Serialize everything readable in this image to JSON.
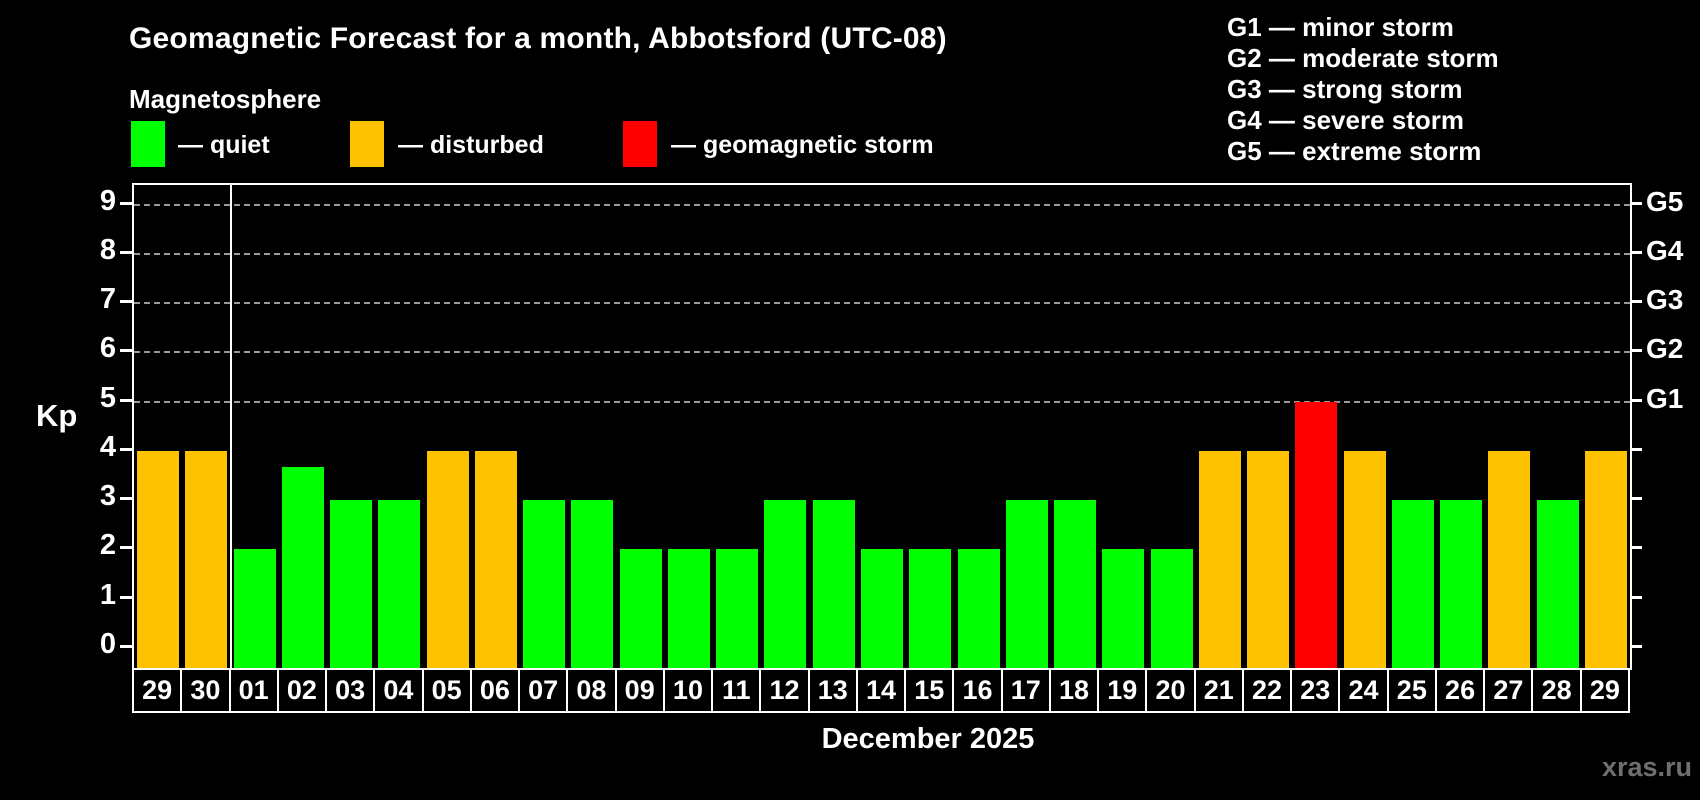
{
  "title": "Geomagnetic Forecast for a month, Abbotsford (UTC-08)",
  "subtitle": "Magnetosphere",
  "legend": {
    "quiet_label": "— quiet",
    "disturbed_label": "— disturbed",
    "storm_label": "— geomagnetic storm"
  },
  "storm_scale_legend": [
    "G1 — minor storm",
    "G2 — moderate storm",
    "G3 — strong storm",
    "G4 — severe storm",
    "G5 — extreme storm"
  ],
  "watermark": "xras.ru",
  "colors": {
    "quiet": "#00ff00",
    "disturbed": "#ffc200",
    "storm": "#ff0000",
    "grid": "#999999",
    "frame": "#ffffff",
    "background": "#000000",
    "watermark": "#6f6f6f"
  },
  "chart_data": {
    "type": "bar",
    "title": "Geomagnetic Forecast for a month, Abbotsford (UTC-08)",
    "xlabel": "December 2025",
    "ylabel": "Kp",
    "ylim": [
      -0.45,
      9.4
    ],
    "y_ticks": [
      0,
      1,
      2,
      3,
      4,
      5,
      6,
      7,
      8,
      9
    ],
    "right_axis_labels": [
      {
        "text": "G1",
        "value": 5
      },
      {
        "text": "G2",
        "value": 6
      },
      {
        "text": "G3",
        "value": 7
      },
      {
        "text": "G4",
        "value": 8
      },
      {
        "text": "G5",
        "value": 9
      }
    ],
    "gridline_values": [
      5,
      6,
      7,
      8,
      9
    ],
    "month_separator_after_index": 1,
    "categories": [
      "29",
      "30",
      "01",
      "02",
      "03",
      "04",
      "05",
      "06",
      "07",
      "08",
      "09",
      "10",
      "11",
      "12",
      "13",
      "14",
      "15",
      "16",
      "17",
      "18",
      "19",
      "20",
      "21",
      "22",
      "23",
      "24",
      "25",
      "26",
      "27",
      "28",
      "29"
    ],
    "values": [
      4,
      4,
      2,
      3.67,
      3,
      3,
      4,
      4,
      3,
      3,
      2,
      2,
      2,
      3,
      3,
      2,
      2,
      2,
      3,
      3,
      2,
      2,
      4,
      4,
      5,
      4,
      3,
      3,
      4,
      3,
      4
    ],
    "states": [
      "disturbed",
      "disturbed",
      "quiet",
      "quiet",
      "quiet",
      "quiet",
      "disturbed",
      "disturbed",
      "quiet",
      "quiet",
      "quiet",
      "quiet",
      "quiet",
      "quiet",
      "quiet",
      "quiet",
      "quiet",
      "quiet",
      "quiet",
      "quiet",
      "quiet",
      "quiet",
      "disturbed",
      "disturbed",
      "storm",
      "disturbed",
      "quiet",
      "quiet",
      "disturbed",
      "quiet",
      "disturbed"
    ]
  }
}
